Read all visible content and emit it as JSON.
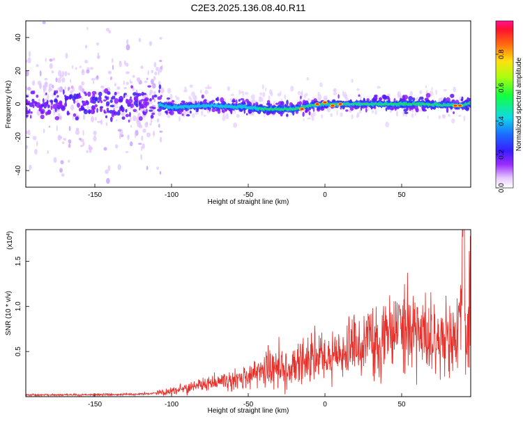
{
  "title": "C2E3.2025.136.08.40.R11",
  "colors": {
    "snr_line": "#e8302a",
    "axis": "#000000",
    "band_core": "#2cc7d8",
    "band_hot": "#ff2a1a"
  },
  "chart_data": [
    {
      "type": "heatmap",
      "xlabel": "Height of straight line (km)",
      "ylabel": "Frequency (Hz)",
      "xlim": [
        -195,
        95
      ],
      "ylim": [
        -50,
        50
      ],
      "x_ticks": [
        -150,
        -100,
        -50,
        0,
        50
      ],
      "y_ticks": [
        -40,
        -20,
        0,
        20,
        40
      ],
      "colorbar": {
        "label": "Normalized spectral amplitude",
        "range": [
          0.0,
          1.0
        ],
        "ticks": [
          0.0,
          0.2,
          0.4,
          0.6,
          0.8
        ],
        "tick_labels": [
          "0.0",
          "0.2",
          "0.4",
          "0.6",
          "0.8"
        ]
      },
      "band_center_hz": [
        [
          -195,
          0
        ],
        [
          -150,
          0
        ],
        [
          -110,
          0
        ],
        [
          -100,
          -2
        ],
        [
          -75,
          -1
        ],
        [
          -50,
          -2
        ],
        [
          -40,
          -3
        ],
        [
          -20,
          -3
        ],
        [
          -10,
          -1
        ],
        [
          0,
          0
        ],
        [
          10,
          0
        ],
        [
          30,
          0
        ],
        [
          60,
          0
        ],
        [
          90,
          -1
        ],
        [
          95,
          1
        ]
      ],
      "hot_spots": [
        [
          -15,
          -3
        ],
        [
          -5,
          0
        ],
        [
          0,
          1
        ],
        [
          5,
          -1
        ],
        [
          10,
          0
        ],
        [
          85,
          -1
        ],
        [
          88,
          -1
        ]
      ]
    },
    {
      "type": "line",
      "xlabel": "Height of straight line (km)",
      "ylabel": "SNR (10 * v/v)",
      "y_multiplier": "(x10",
      "y_multiplier_exp": "4",
      "xlim": [
        -195,
        95
      ],
      "ylim": [
        0,
        1.85
      ],
      "x_ticks": [
        -150,
        -100,
        -50,
        0,
        50
      ],
      "y_ticks": [
        0.5,
        1.0,
        1.5
      ],
      "y_tick_labels": [
        "0.5",
        "1.0",
        "1.5"
      ],
      "series": [
        {
          "envelope": [
            [
              -195,
              0.02
            ],
            [
              -150,
              0.02
            ],
            [
              -115,
              0.03
            ],
            [
              -100,
              0.06
            ],
            [
              -80,
              0.12
            ],
            [
              -60,
              0.18
            ],
            [
              -45,
              0.25
            ],
            [
              -35,
              0.32
            ],
            [
              -25,
              0.3
            ],
            [
              -15,
              0.38
            ],
            [
              -5,
              0.42
            ],
            [
              10,
              0.48
            ],
            [
              25,
              0.58
            ],
            [
              40,
              0.65
            ],
            [
              55,
              0.7
            ],
            [
              70,
              0.66
            ],
            [
              85,
              0.62
            ],
            [
              88,
              0.85
            ],
            [
              90,
              1.85
            ],
            [
              92,
              0.4
            ],
            [
              95,
              1.4
            ]
          ]
        }
      ]
    }
  ]
}
